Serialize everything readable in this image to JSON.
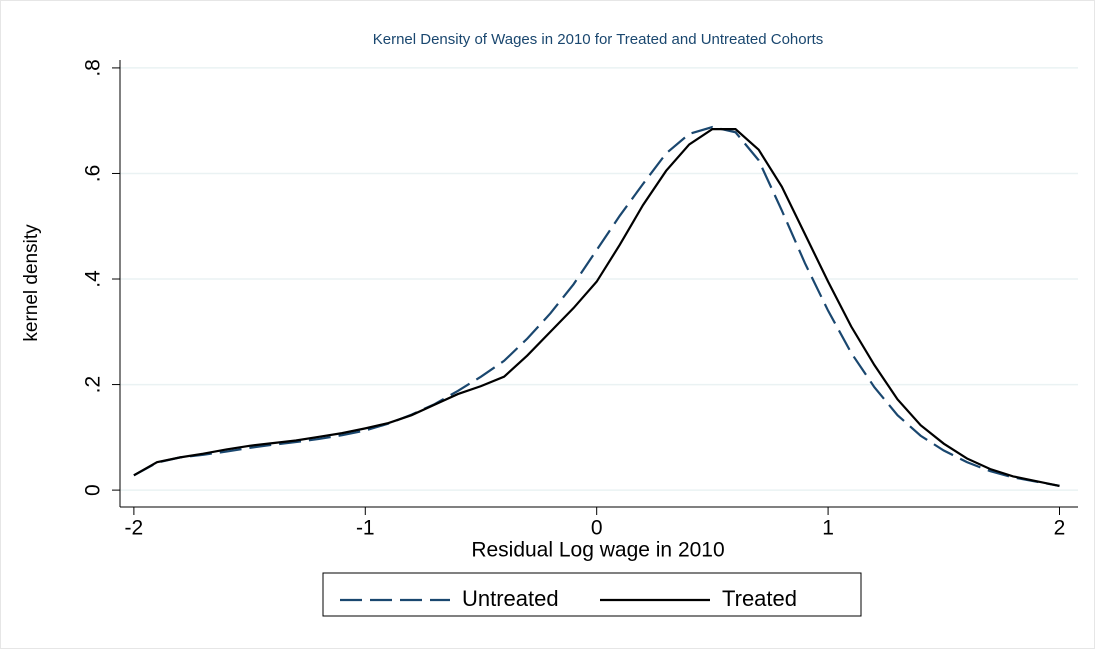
{
  "chart_data": {
    "type": "line",
    "title": "Kernel Density of Wages in 2010 for Treated and Untreated Cohorts",
    "x_label": "Residual Log wage in 2010",
    "y_label": "kernel density",
    "x": [
      -2,
      -1.9,
      -1.8,
      -1.7,
      -1.6,
      -1.5,
      -1.4,
      -1.3,
      -1.2,
      -1.1,
      -1,
      -0.9,
      -0.8,
      -0.7,
      -0.6,
      -0.5,
      -0.4,
      -0.3,
      -0.2,
      -0.1,
      0,
      0.1,
      0.2,
      0.3,
      0.4,
      0.5,
      0.6,
      0.7,
      0.8,
      0.9,
      1,
      1.1,
      1.2,
      1.3,
      1.4,
      1.5,
      1.6,
      1.7,
      1.8,
      1.9,
      2
    ],
    "series": [
      {
        "name": "Untreated",
        "color": "#1a476f",
        "dash": true,
        "values": [
          0.028,
          0.052,
          0.062,
          0.067,
          0.073,
          0.08,
          0.086,
          0.091,
          0.097,
          0.104,
          0.113,
          0.126,
          0.143,
          0.163,
          0.188,
          0.215,
          0.245,
          0.287,
          0.335,
          0.39,
          0.455,
          0.52,
          0.58,
          0.638,
          0.675,
          0.688,
          0.678,
          0.625,
          0.53,
          0.43,
          0.34,
          0.26,
          0.195,
          0.142,
          0.103,
          0.075,
          0.053,
          0.036,
          0.024,
          0.016,
          0.008
        ]
      },
      {
        "name": "Treated",
        "color": "#000000",
        "dash": false,
        "values": [
          0.028,
          0.053,
          0.062,
          0.069,
          0.077,
          0.084,
          0.089,
          0.094,
          0.101,
          0.108,
          0.117,
          0.127,
          0.142,
          0.162,
          0.182,
          0.197,
          0.215,
          0.255,
          0.3,
          0.345,
          0.395,
          0.465,
          0.54,
          0.605,
          0.655,
          0.684,
          0.684,
          0.645,
          0.575,
          0.485,
          0.395,
          0.31,
          0.237,
          0.172,
          0.123,
          0.088,
          0.06,
          0.04,
          0.026,
          0.017,
          0.008
        ]
      }
    ],
    "xlim": [
      -2.06,
      2.08
    ],
    "xticks": [
      -2,
      -1,
      0,
      1,
      2
    ],
    "ylim": [
      -0.032,
      0.815
    ],
    "yticks": [
      0,
      {
        "value": 0.2,
        "label": ".2"
      },
      {
        "value": 0.4,
        "label": ".4"
      },
      {
        "value": 0.6,
        "label": ".6"
      },
      {
        "value": 0.8,
        "label": ".8"
      }
    ],
    "grid": true,
    "legend": "bottom"
  }
}
